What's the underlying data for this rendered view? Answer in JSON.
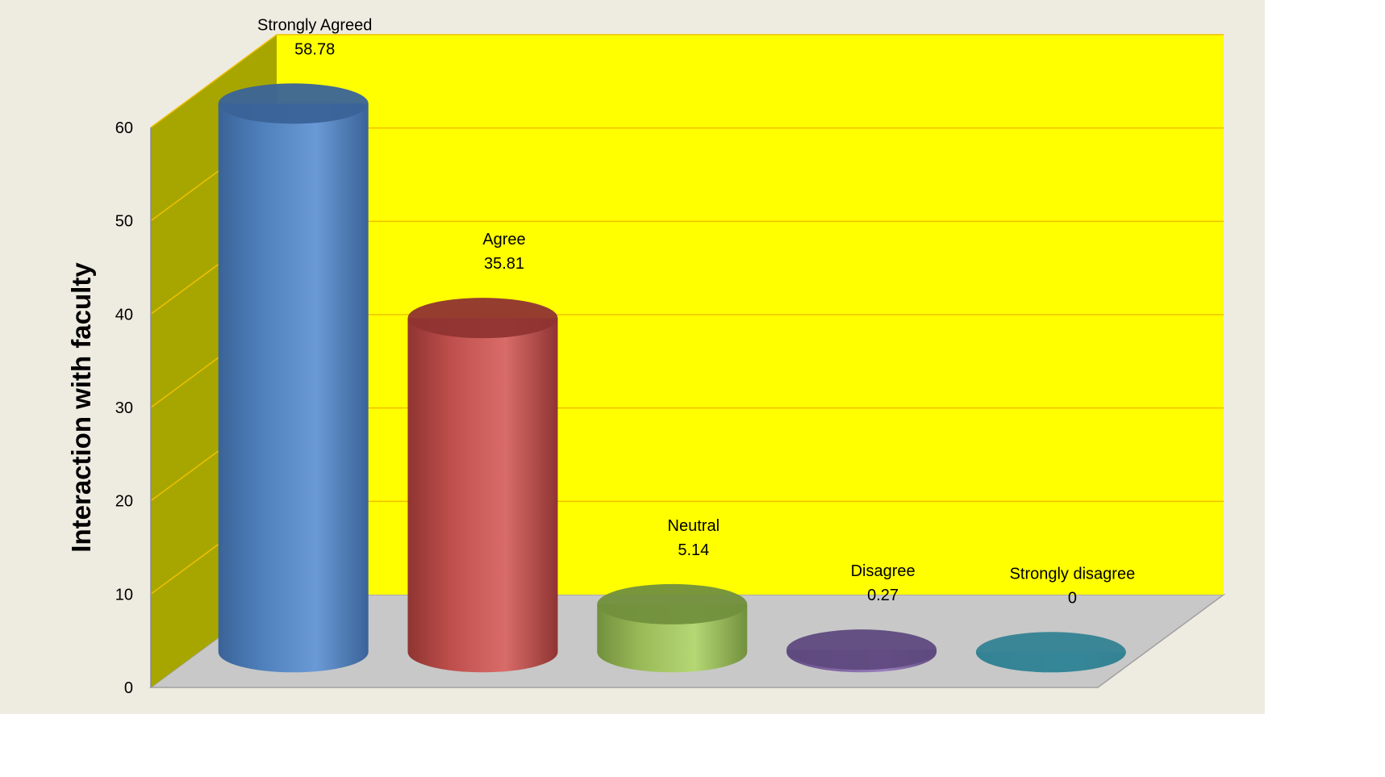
{
  "chart_data": {
    "type": "bar",
    "style": "3d-cylinder",
    "ylabel": "Interaction with faculty",
    "xlabel": "",
    "ylim": [
      0,
      60
    ],
    "yticks": [
      0,
      10,
      20,
      30,
      40,
      50,
      60
    ],
    "grid": true,
    "legend": "none",
    "categories": [
      "Strongly Agreed",
      "Agree",
      "Neutral",
      "Disagree",
      "Strongly disagree"
    ],
    "values": [
      58.78,
      35.81,
      5.14,
      0.27,
      0
    ],
    "value_labels": [
      "58.78",
      "35.81",
      "5.14",
      "0.27",
      "0"
    ],
    "colors": [
      "#4f81bd",
      "#c0504d",
      "#9bbb59",
      "#8064a2",
      "#4bacc6"
    ],
    "colors_dark": [
      "#3a6398",
      "#8f3432",
      "#72903d",
      "#5f4a80",
      "#348394"
    ],
    "colors_light": [
      "#6a9ad6",
      "#d86c69",
      "#b5d774",
      "#9a7fbd",
      "#5cc4de"
    ],
    "wall_color": "#ffff00",
    "side_wall_color": "#a7a600",
    "floor_color": "#c8c8c8",
    "gridline_color": "#f0c000",
    "background_color": "#eeece1"
  }
}
